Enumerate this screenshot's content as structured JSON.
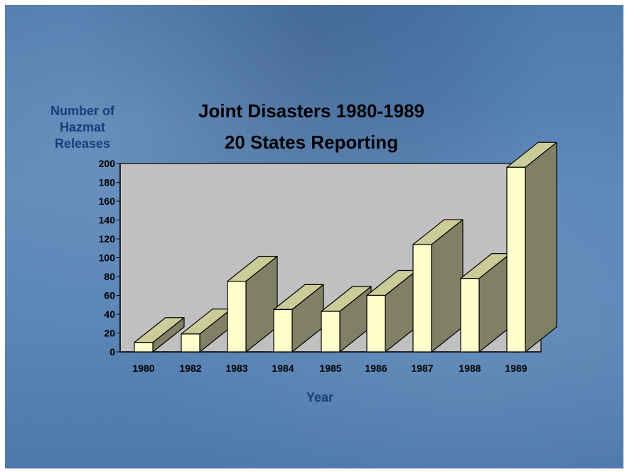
{
  "chart_data": {
    "type": "bar",
    "title": "Joint Disasters 1980-1989",
    "subtitle": "20 States Reporting",
    "ylabel": "Number of Hazmat Releases",
    "xlabel": "Year",
    "categories": [
      "1980",
      "1982",
      "1983",
      "1984",
      "1985",
      "1986",
      "1987",
      "1988",
      "1989"
    ],
    "values": [
      10,
      19,
      75,
      45,
      43,
      60,
      114,
      78,
      196
    ],
    "ylim": [
      0,
      200
    ],
    "yticks": [
      0,
      20,
      40,
      60,
      80,
      100,
      120,
      140,
      160,
      180,
      200
    ],
    "grid": false,
    "legend": "none",
    "colors": {
      "bar_front": "#ffffcc",
      "bar_top": "#cccc99",
      "bar_side": "#808066",
      "plot_back": "#c0c0c0"
    }
  }
}
